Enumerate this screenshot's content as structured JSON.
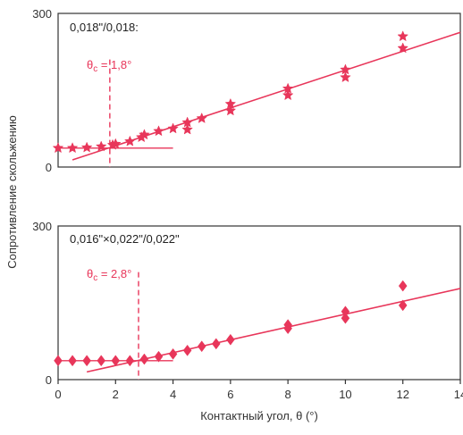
{
  "chart_data": [
    {
      "type": "scatter",
      "annotation": "0,018\"/0,018:",
      "theta_c_label": "θc = 1,8°",
      "ylim": [
        0,
        300
      ],
      "xlim": [
        0,
        14
      ],
      "yticks": [
        "0",
        "300"
      ],
      "marker": "star",
      "color": "#e8365a",
      "points": [
        {
          "x": 0,
          "y": 37
        },
        {
          "x": 0.5,
          "y": 37
        },
        {
          "x": 1,
          "y": 38
        },
        {
          "x": 1.5,
          "y": 40
        },
        {
          "x": 1.9,
          "y": 43
        },
        {
          "x": 2,
          "y": 45
        },
        {
          "x": 2.5,
          "y": 50
        },
        {
          "x": 2.9,
          "y": 58
        },
        {
          "x": 3,
          "y": 63
        },
        {
          "x": 3.5,
          "y": 70
        },
        {
          "x": 4,
          "y": 75
        },
        {
          "x": 4.5,
          "y": 73
        },
        {
          "x": 4.5,
          "y": 87
        },
        {
          "x": 5,
          "y": 95
        },
        {
          "x": 6,
          "y": 110
        },
        {
          "x": 6,
          "y": 123
        },
        {
          "x": 8,
          "y": 140
        },
        {
          "x": 8,
          "y": 153
        },
        {
          "x": 10,
          "y": 175
        },
        {
          "x": 10,
          "y": 190
        },
        {
          "x": 12,
          "y": 232
        },
        {
          "x": 12,
          "y": 255
        }
      ],
      "fit_line": {
        "x": [
          0.5,
          14
        ],
        "y": [
          14,
          263
        ]
      },
      "baseline": {
        "x": [
          0,
          4
        ],
        "y": [
          37,
          37
        ]
      },
      "theta_c": 1.8
    },
    {
      "type": "scatter",
      "annotation": "0,016\"×0,022\"/0,022\"",
      "theta_c_label": "θc = 2,8°",
      "ylim": [
        0,
        300
      ],
      "xlim": [
        0,
        14
      ],
      "yticks": [
        "0",
        "300"
      ],
      "xticks": [
        "0",
        "2",
        "4",
        "6",
        "8",
        "10",
        "12",
        "14"
      ],
      "marker": "diamond",
      "color": "#e8365a",
      "points": [
        {
          "x": 0,
          "y": 37
        },
        {
          "x": 0.5,
          "y": 37
        },
        {
          "x": 1,
          "y": 37
        },
        {
          "x": 1.5,
          "y": 37
        },
        {
          "x": 2,
          "y": 37
        },
        {
          "x": 2.5,
          "y": 37
        },
        {
          "x": 3,
          "y": 40
        },
        {
          "x": 3.5,
          "y": 45
        },
        {
          "x": 4,
          "y": 50
        },
        {
          "x": 4.5,
          "y": 57
        },
        {
          "x": 5,
          "y": 65
        },
        {
          "x": 5.5,
          "y": 70
        },
        {
          "x": 6,
          "y": 78
        },
        {
          "x": 8,
          "y": 100
        },
        {
          "x": 8,
          "y": 107
        },
        {
          "x": 10,
          "y": 120
        },
        {
          "x": 10,
          "y": 133
        },
        {
          "x": 12,
          "y": 145
        },
        {
          "x": 12,
          "y": 183
        }
      ],
      "fit_line": {
        "x": [
          1,
          14
        ],
        "y": [
          15,
          178
        ]
      },
      "baseline": {
        "x": [
          0,
          4
        ],
        "y": [
          37,
          37
        ]
      },
      "theta_c": 2.8
    }
  ],
  "ylabel": "Сопротивление скольжению",
  "xlabel": "Контактный угол, θ (°)",
  "colors": {
    "data": "#e8365a",
    "axes": "#333333"
  }
}
